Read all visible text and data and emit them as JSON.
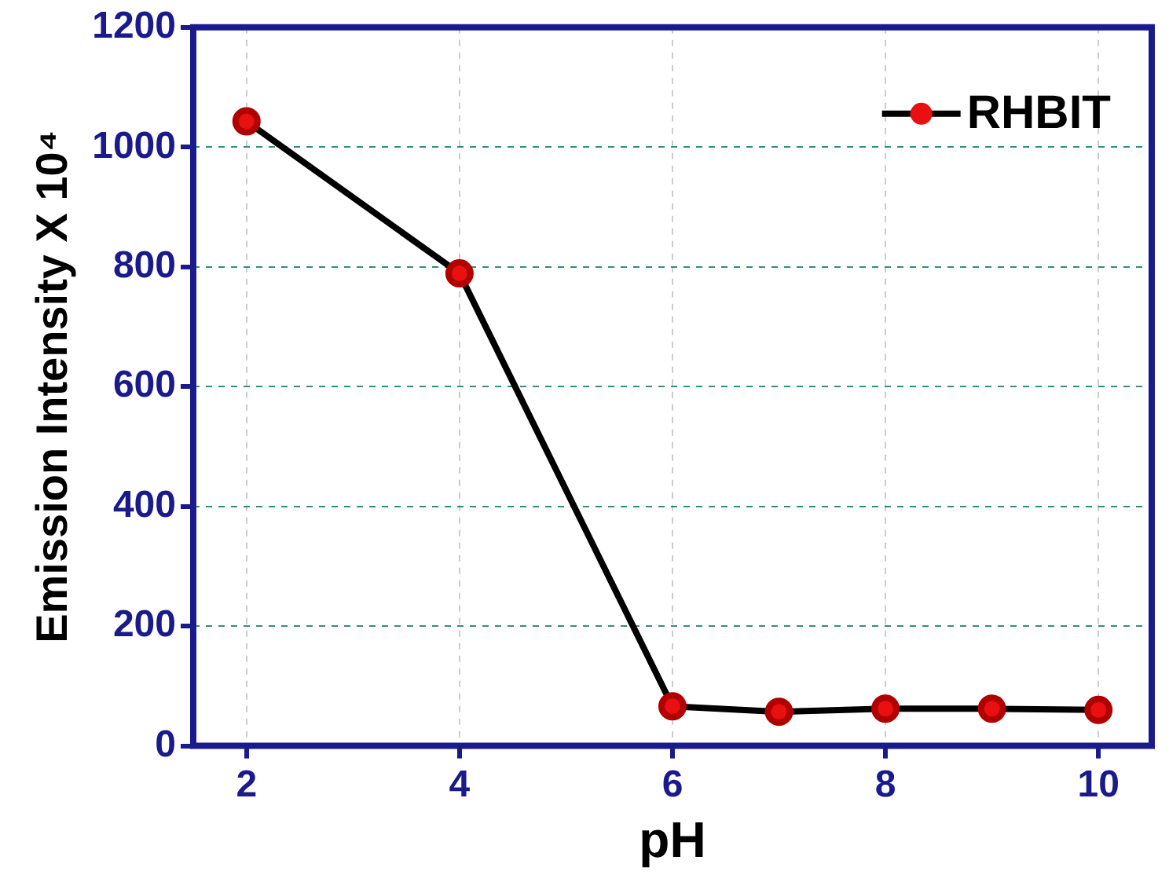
{
  "chart_data": {
    "type": "line",
    "xlabel": "pH",
    "ylabel": "Emission Intensity X 10⁴",
    "x": [
      2,
      4,
      6,
      7,
      8,
      9,
      10
    ],
    "series": [
      {
        "name": "RHBIT",
        "color": "#000000",
        "values": [
          1043,
          789,
          66,
          57,
          62,
          62,
          60
        ]
      }
    ],
    "xlim": [
      1.5,
      10.5
    ],
    "xticks": [
      2,
      4,
      6,
      8,
      10
    ],
    "ylim": [
      0,
      1200
    ],
    "yticks": [
      0,
      200,
      400,
      600,
      800,
      1000,
      1200
    ],
    "grid": true,
    "legend": "top right",
    "marker": "circle",
    "line_style": "solid"
  }
}
